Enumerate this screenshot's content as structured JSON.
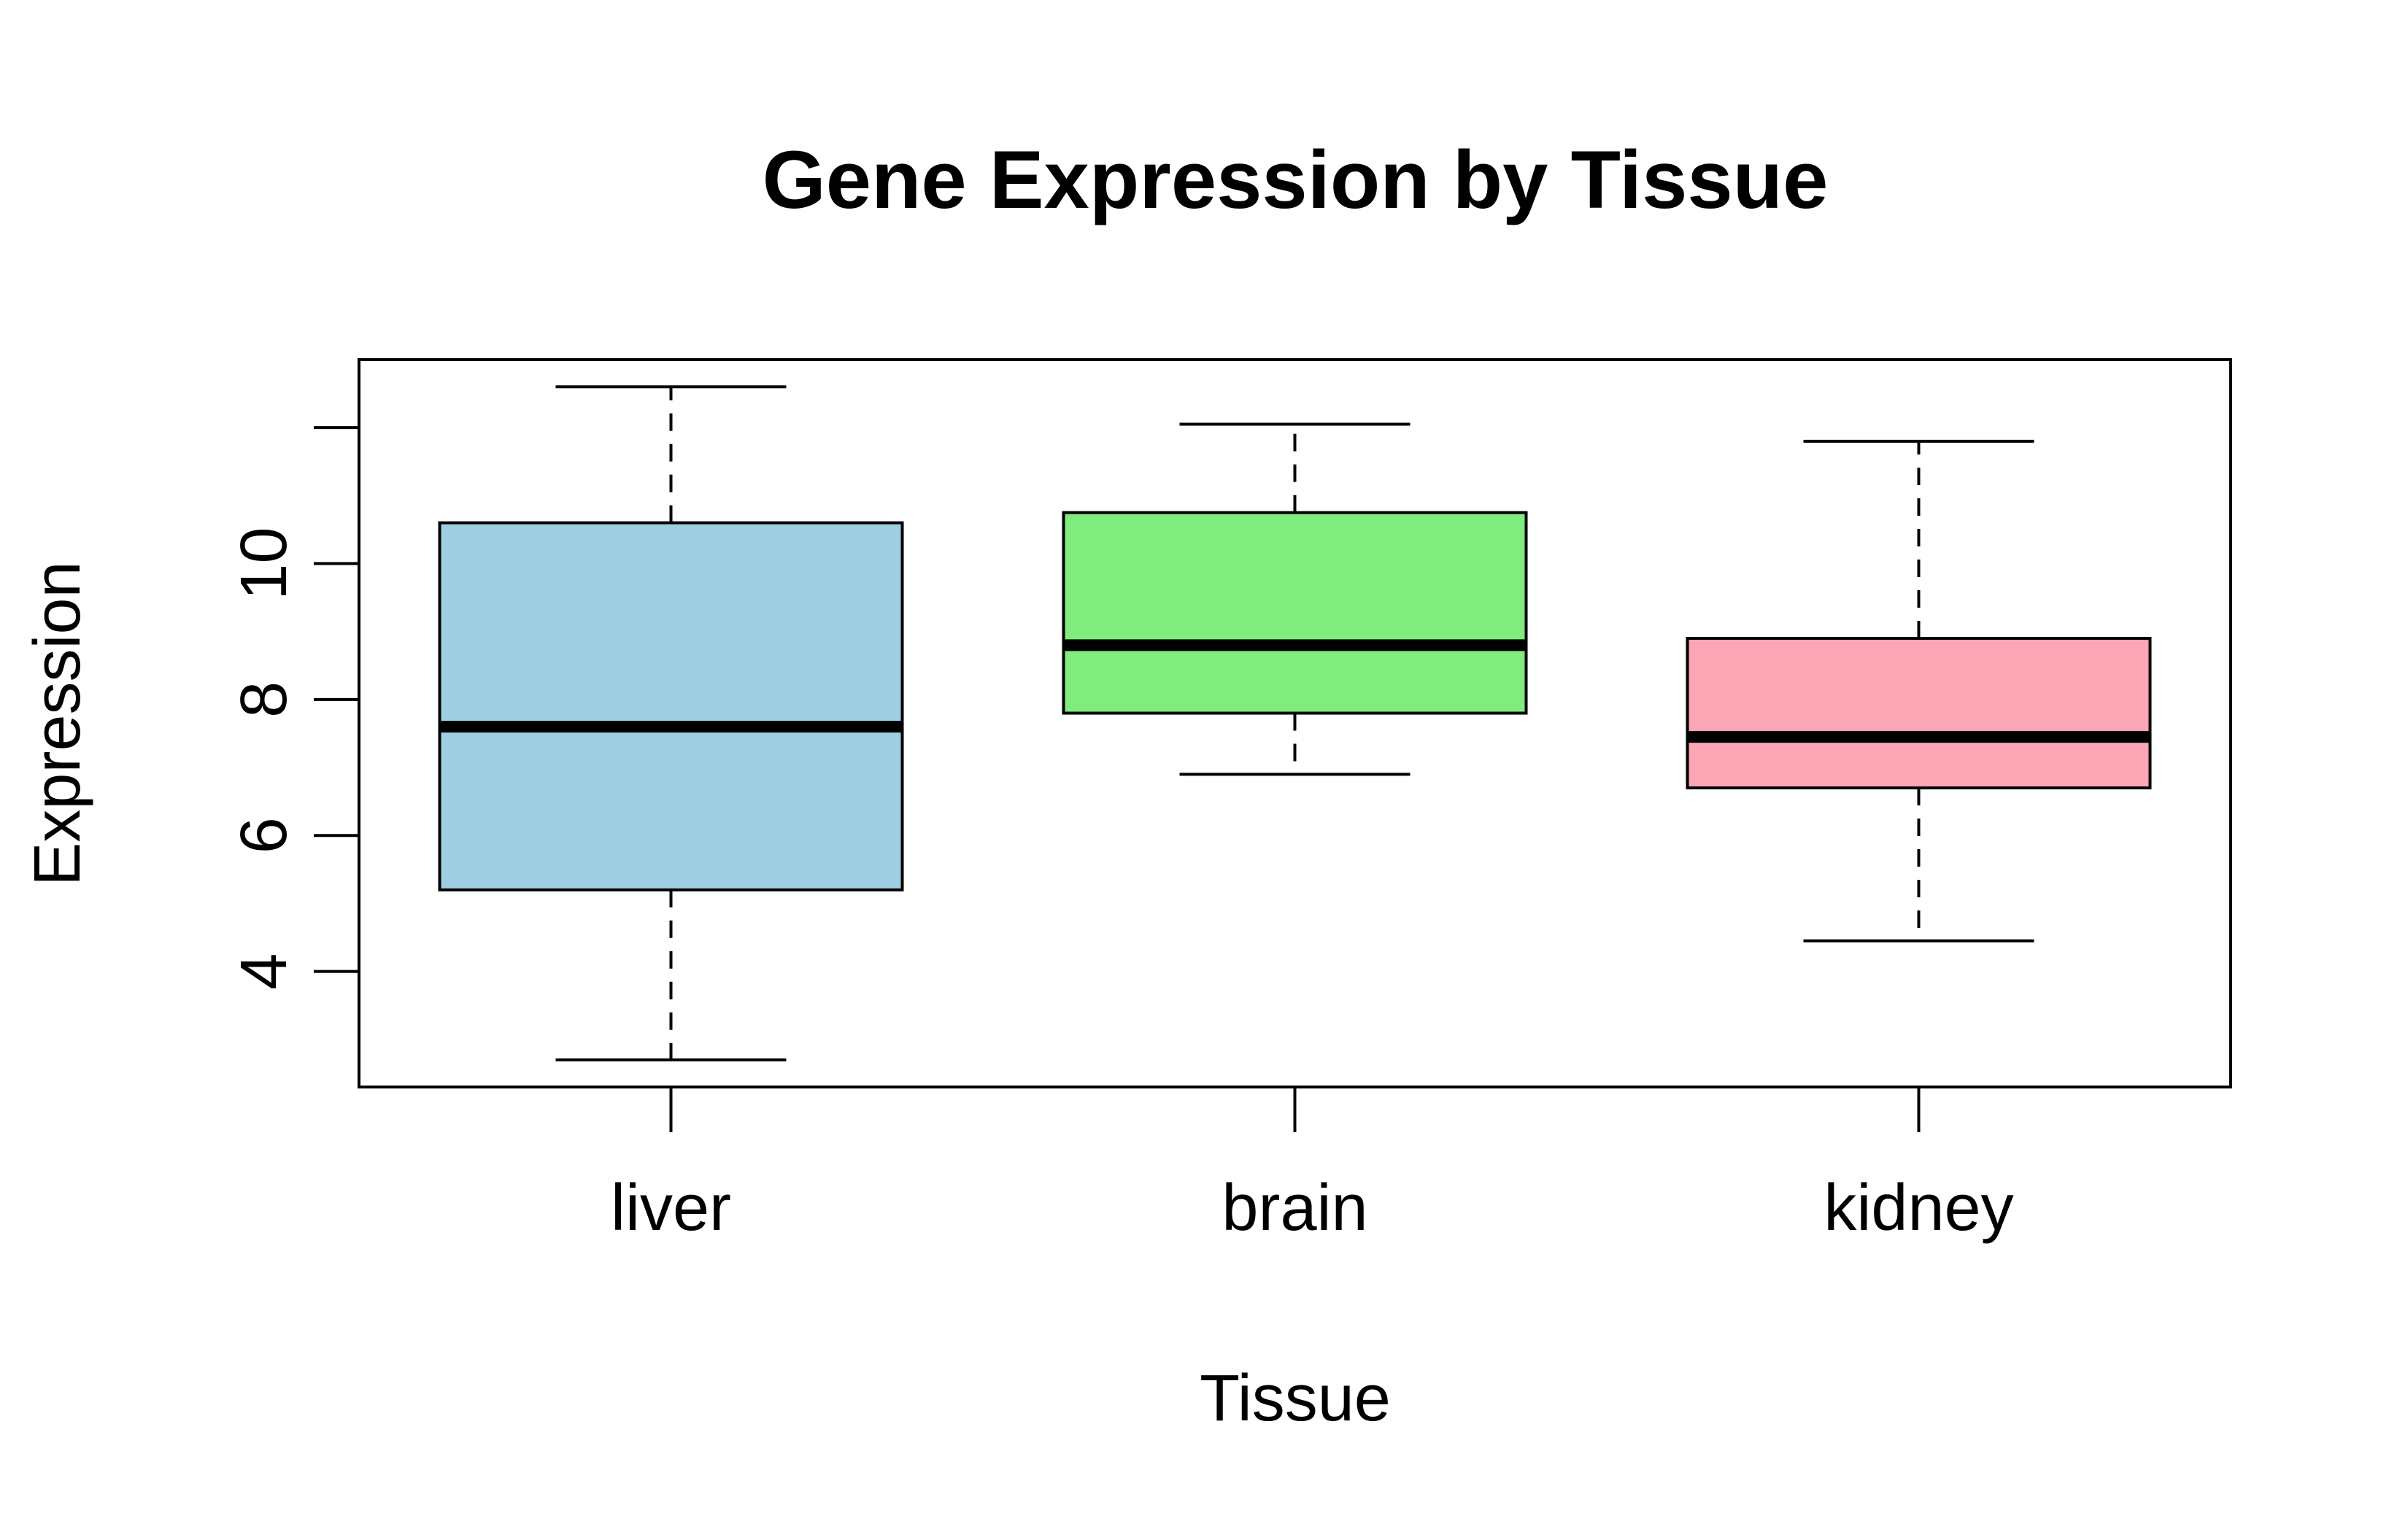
{
  "chart_data": {
    "type": "boxplot",
    "title": "Gene Expression by Tissue",
    "xlabel": "Tissue",
    "ylabel": "Expression",
    "ylim": [
      2.3,
      13.0
    ],
    "yticks": [
      4,
      6,
      8,
      10,
      12
    ],
    "ytick_labels": [
      "4",
      "6",
      "8",
      "10",
      ""
    ],
    "grid": false,
    "categories": [
      "liver",
      "brain",
      "kidney"
    ],
    "boxes": [
      {
        "category": "liver",
        "whisker_low": 2.7,
        "q1": 5.2,
        "median": 7.6,
        "q3": 10.6,
        "whisker_high": 12.6,
        "color": "#9ecfe0"
      },
      {
        "category": "brain",
        "whisker_low": 6.9,
        "q1": 7.8,
        "median": 8.8,
        "q3": 10.75,
        "whisker_high": 12.05,
        "color": "#80ec7d"
      },
      {
        "category": "kidney",
        "whisker_low": 4.45,
        "q1": 6.7,
        "median": 7.45,
        "q3": 8.9,
        "whisker_high": 11.8,
        "color": "#fca5b5"
      }
    ]
  }
}
